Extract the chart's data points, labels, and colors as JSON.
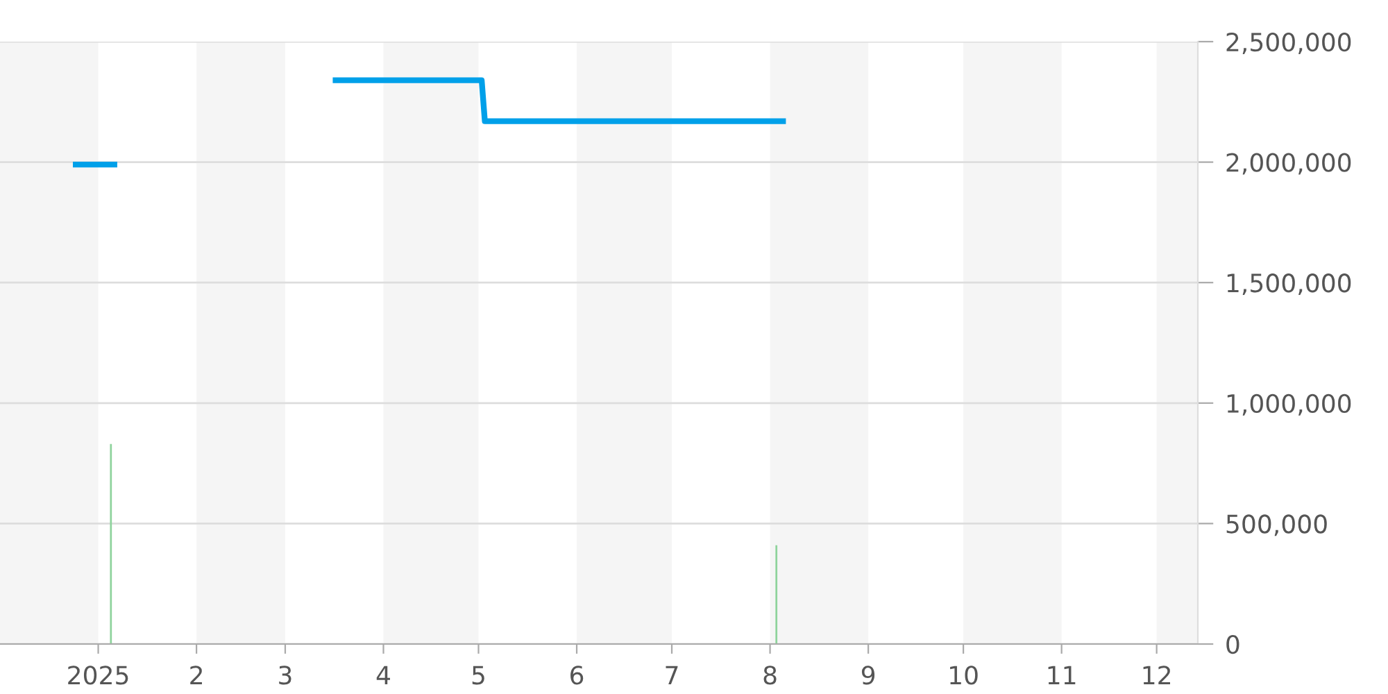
{
  "chart_data": {
    "type": "line",
    "series": [
      {
        "color": "#00a0e9",
        "x": [
          "2024-12-24",
          "2025-01-07",
          "2025-02-10",
          "2025-03-16",
          "2025-05-02",
          "2025-05-03",
          "2025-08-06"
        ],
        "values": [
          1990000,
          1990000,
          null,
          2340000,
          2340000,
          2170000,
          2170000
        ]
      },
      {
        "type": "bar",
        "color": "#8ed39c",
        "x": [
          "2025-01-05",
          "2025-08-03"
        ],
        "values": [
          830000,
          410000
        ]
      }
    ],
    "xlim": [
      "2024-12-01",
      "2025-12-14"
    ],
    "xticks": [
      {
        "value": "2025-01-01",
        "label": "2025"
      },
      {
        "value": "2025-02-01",
        "label": "2"
      },
      {
        "value": "2025-03-01",
        "label": "3"
      },
      {
        "value": "2025-04-01",
        "label": "4"
      },
      {
        "value": "2025-05-01",
        "label": "5"
      },
      {
        "value": "2025-06-01",
        "label": "6"
      },
      {
        "value": "2025-07-01",
        "label": "7"
      },
      {
        "value": "2025-08-01",
        "label": "8"
      },
      {
        "value": "2025-09-01",
        "label": "9"
      },
      {
        "value": "2025-10-01",
        "label": "10"
      },
      {
        "value": "2025-11-01",
        "label": "11"
      },
      {
        "value": "2025-12-01",
        "label": "12"
      }
    ],
    "ylim": [
      0,
      2500000
    ],
    "yticks": [
      {
        "value": 0,
        "label": "0"
      },
      {
        "value": 500000,
        "label": "500,000"
      },
      {
        "value": 1000000,
        "label": "1,000,000"
      },
      {
        "value": 1500000,
        "label": "1,500,000"
      },
      {
        "value": 2000000,
        "label": "2,000,000"
      },
      {
        "value": 2500000,
        "label": "2,500,000"
      }
    ],
    "bands": [
      {
        "axis": "x",
        "from": "2024-12-01",
        "to": "2025-01-01",
        "color": "#f5f5f5"
      },
      {
        "axis": "x",
        "from": "2025-02-01",
        "to": "2025-03-01",
        "color": "#f5f5f5"
      },
      {
        "axis": "x",
        "from": "2025-04-01",
        "to": "2025-05-01",
        "color": "#f5f5f5"
      },
      {
        "axis": "x",
        "from": "2025-06-01",
        "to": "2025-07-01",
        "color": "#f5f5f5"
      },
      {
        "axis": "x",
        "from": "2025-08-01",
        "to": "2025-09-01",
        "color": "#f5f5f5"
      },
      {
        "axis": "x",
        "from": "2025-10-01",
        "to": "2025-11-01",
        "color": "#f5f5f5"
      },
      {
        "axis": "x",
        "from": "2025-12-01",
        "to": "2025-12-14",
        "color": "#f5f5f5"
      }
    ],
    "grid": "y",
    "line_style": "solid",
    "marker": "none"
  }
}
